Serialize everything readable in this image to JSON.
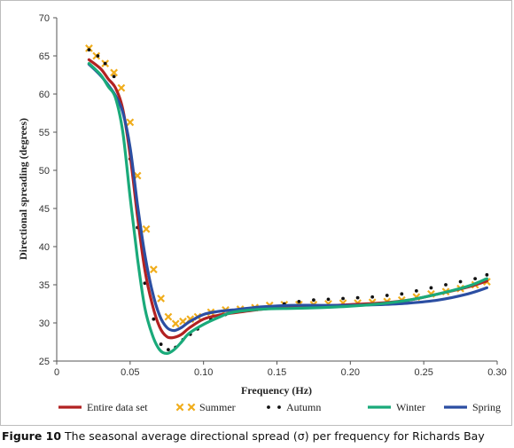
{
  "caption": {
    "label": "Figure 10",
    "text": "The seasonal average directional spread (σ) per frequency for Richards Bay"
  },
  "chart_data": {
    "type": "line",
    "title": "",
    "xlabel": "Frequency (Hz)",
    "ylabel": "Directional spreading (degrees)",
    "xlim": [
      0,
      0.3
    ],
    "ylim": [
      25,
      70
    ],
    "xticks": [
      "0",
      "0.05",
      "0.10",
      "0.15",
      "0.20",
      "0.25",
      "0.30"
    ],
    "yticks": [
      "25",
      "30",
      "35",
      "40",
      "45",
      "50",
      "55",
      "60",
      "65",
      "70"
    ],
    "grid": false,
    "legend_position": "bottom",
    "series": [
      {
        "name": "Entire data set",
        "style": "line",
        "color": "#b22222",
        "x": [
          0.022,
          0.03,
          0.035,
          0.04,
          0.045,
          0.05,
          0.055,
          0.06,
          0.065,
          0.07,
          0.075,
          0.08,
          0.085,
          0.09,
          0.1,
          0.11,
          0.12,
          0.14,
          0.16,
          0.18,
          0.2,
          0.22,
          0.24,
          0.26,
          0.28,
          0.293
        ],
        "y": [
          64.5,
          63.3,
          62,
          60.8,
          58,
          52,
          44,
          37,
          32.5,
          29.5,
          28.2,
          28.1,
          28.5,
          29.3,
          30.5,
          31,
          31.3,
          31.8,
          32.1,
          32.2,
          32.4,
          32.6,
          33,
          33.8,
          34.7,
          35.5
        ]
      },
      {
        "name": "Summer",
        "style": "x-marker",
        "color": "#f0ad1c",
        "x": [
          0.022,
          0.027,
          0.033,
          0.039,
          0.044,
          0.05,
          0.055,
          0.061,
          0.066,
          0.071,
          0.076,
          0.081,
          0.086,
          0.091,
          0.096,
          0.105,
          0.115,
          0.125,
          0.135,
          0.145,
          0.155,
          0.165,
          0.175,
          0.185,
          0.195,
          0.205,
          0.215,
          0.225,
          0.235,
          0.245,
          0.255,
          0.265,
          0.275,
          0.285,
          0.293
        ],
        "y": [
          66,
          65,
          64,
          62.8,
          60.8,
          56.3,
          49.3,
          42.3,
          37,
          33.2,
          30.8,
          29.9,
          30.2,
          30.5,
          30.8,
          31.4,
          31.7,
          31.8,
          32,
          32.3,
          32.4,
          32.4,
          32.4,
          32.5,
          32.6,
          32.6,
          32.7,
          32.8,
          33,
          33.4,
          33.8,
          34.1,
          34.5,
          35,
          35.4
        ]
      },
      {
        "name": "Autumn",
        "style": "dot-marker",
        "color": "#111111",
        "x": [
          0.022,
          0.028,
          0.033,
          0.039,
          0.044,
          0.05,
          0.055,
          0.06,
          0.066,
          0.071,
          0.076,
          0.081,
          0.086,
          0.091,
          0.096,
          0.105,
          0.115,
          0.125,
          0.135,
          0.145,
          0.155,
          0.165,
          0.175,
          0.185,
          0.195,
          0.205,
          0.215,
          0.225,
          0.235,
          0.245,
          0.255,
          0.265,
          0.275,
          0.285,
          0.293
        ],
        "y": [
          65.8,
          65,
          64,
          62.3,
          58.5,
          51.5,
          42.5,
          35.2,
          30.5,
          27.2,
          26.5,
          26.8,
          27.8,
          28.5,
          29.2,
          30.5,
          31.1,
          31.6,
          31.9,
          32.1,
          32.5,
          32.8,
          33,
          33.1,
          33.2,
          33.3,
          33.4,
          33.6,
          33.8,
          34.2,
          34.6,
          35,
          35.4,
          35.8,
          36.3
        ]
      },
      {
        "name": "Winter",
        "style": "line",
        "color": "#1aaa7a",
        "x": [
          0.022,
          0.03,
          0.035,
          0.04,
          0.045,
          0.05,
          0.055,
          0.06,
          0.065,
          0.07,
          0.075,
          0.08,
          0.085,
          0.09,
          0.1,
          0.11,
          0.12,
          0.14,
          0.16,
          0.18,
          0.2,
          0.22,
          0.24,
          0.26,
          0.28,
          0.293
        ],
        "y": [
          64,
          62.5,
          61,
          59.5,
          55,
          46.5,
          38.5,
          32,
          28.5,
          26.5,
          26,
          26.5,
          27.5,
          28.6,
          29.8,
          30.7,
          31.4,
          31.8,
          31.9,
          32,
          32.2,
          32.5,
          33,
          33.8,
          34.8,
          35.8
        ]
      },
      {
        "name": "Spring",
        "style": "line",
        "color": "#2b4ea2",
        "x": [
          0.022,
          0.03,
          0.035,
          0.04,
          0.045,
          0.05,
          0.055,
          0.06,
          0.065,
          0.07,
          0.075,
          0.08,
          0.085,
          0.09,
          0.1,
          0.11,
          0.12,
          0.14,
          0.16,
          0.18,
          0.2,
          0.22,
          0.24,
          0.26,
          0.28,
          0.293
        ],
        "y": [
          63.9,
          62.4,
          61.2,
          59.8,
          57.6,
          53,
          45.5,
          39,
          34.2,
          31,
          29.4,
          29,
          29.4,
          30.1,
          31.1,
          31.5,
          31.7,
          32.1,
          32.3,
          32.3,
          32.3,
          32.4,
          32.6,
          33,
          33.8,
          34.6
        ]
      }
    ]
  }
}
